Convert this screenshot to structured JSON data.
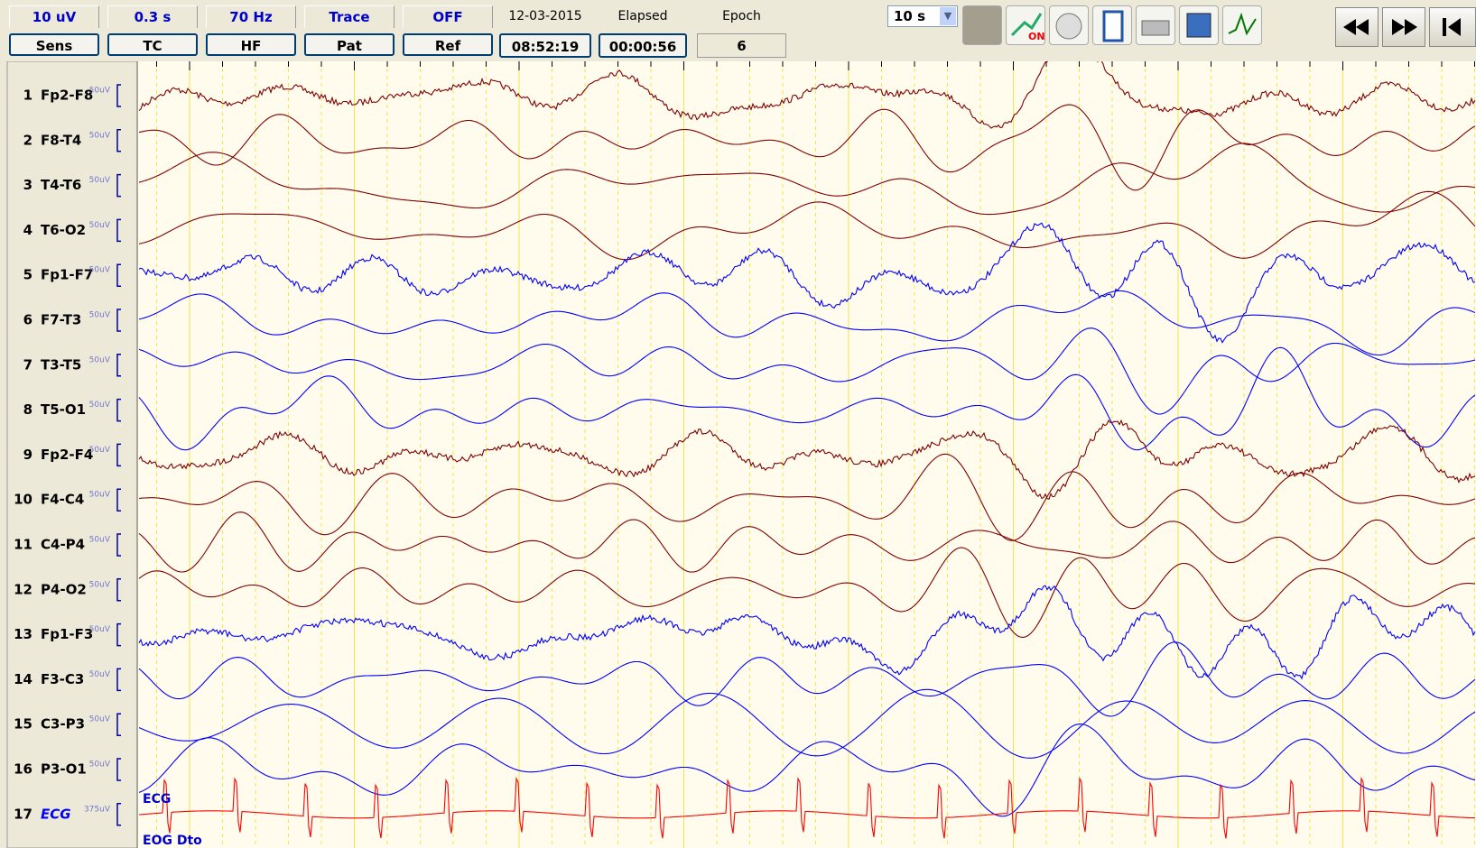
{
  "toolbar": {
    "settings": [
      {
        "value": "10 uV",
        "label": "Sens"
      },
      {
        "value": "0.3 s",
        "label": "TC"
      },
      {
        "value": "70 Hz",
        "label": "HF"
      },
      {
        "value": "Trace",
        "label": "Pat"
      },
      {
        "value": "OFF",
        "label": "Ref"
      }
    ],
    "date": "12-03-2015",
    "elapsed_label": "Elapsed",
    "epoch_label": "Epoch",
    "time": "08:52:19",
    "elapsed": "00:00:56",
    "epoch": "6",
    "page_length": "10 s"
  },
  "channels": [
    {
      "number": "1",
      "name": "Fp2-F8",
      "scale": "50uV"
    },
    {
      "number": "2",
      "name": "F8-T4",
      "scale": "50uV"
    },
    {
      "number": "3",
      "name": "T4-T6",
      "scale": "50uV"
    },
    {
      "number": "4",
      "name": "T6-O2",
      "scale": "50uV"
    },
    {
      "number": "5",
      "name": "Fp1-F7",
      "scale": "50uV"
    },
    {
      "number": "6",
      "name": "F7-T3",
      "scale": "50uV"
    },
    {
      "number": "7",
      "name": "T3-T5",
      "scale": "50uV"
    },
    {
      "number": "8",
      "name": "T5-O1",
      "scale": "50uV"
    },
    {
      "number": "9",
      "name": "Fp2-F4",
      "scale": "50uV"
    },
    {
      "number": "10",
      "name": "F4-C4",
      "scale": "50uV"
    },
    {
      "number": "11",
      "name": "C4-P4",
      "scale": "50uV"
    },
    {
      "number": "12",
      "name": "P4-O2",
      "scale": "50uV"
    },
    {
      "number": "13",
      "name": "Fp1-F3",
      "scale": "50uV"
    },
    {
      "number": "14",
      "name": "F3-C3",
      "scale": "50uV"
    },
    {
      "number": "15",
      "name": "C3-P3",
      "scale": "50uV"
    },
    {
      "number": "16",
      "name": "P3-O1",
      "scale": "50uV"
    },
    {
      "number": "17",
      "name": "ECG",
      "scale": "375uV"
    }
  ],
  "trace_labels": [
    "ECG",
    "EOG Dto"
  ]
}
